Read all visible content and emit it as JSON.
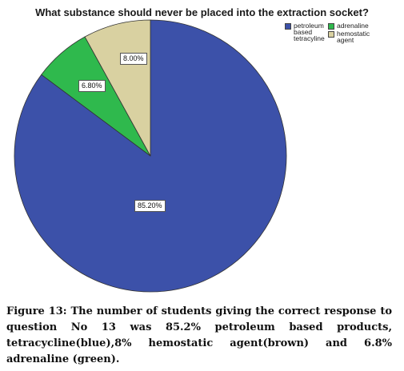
{
  "chart_data": {
    "type": "pie",
    "title": "What substance should never be placed into the extraction socket?",
    "categories": [
      "petroleum based tetracyline",
      "adrenaline",
      "hemostatic agent"
    ],
    "values": [
      85.2,
      6.8,
      8.0
    ],
    "data_labels": [
      "85.20%",
      "6.80%",
      "8.00%"
    ],
    "colors": [
      "#3c51a9",
      "#2fb94d",
      "#d9d1a1"
    ],
    "legend": {
      "placement": "top-right",
      "entries": [
        {
          "label": "petroleum based tetracyline",
          "color": "#3c51a9"
        },
        {
          "label": "adrenaline",
          "color": "#2fb94d"
        },
        {
          "label": "hemostatic agent",
          "color": "#d9d1a1"
        }
      ]
    },
    "start_angle_deg": 0,
    "direction": "clockwise"
  },
  "caption": "Figure 13: The number of students giving the correct response to question No 13 was 85.2% petroleum based products, tetracycline(blue),8% hemostatic agent(brown) and 6.8% adrenaline (green)."
}
